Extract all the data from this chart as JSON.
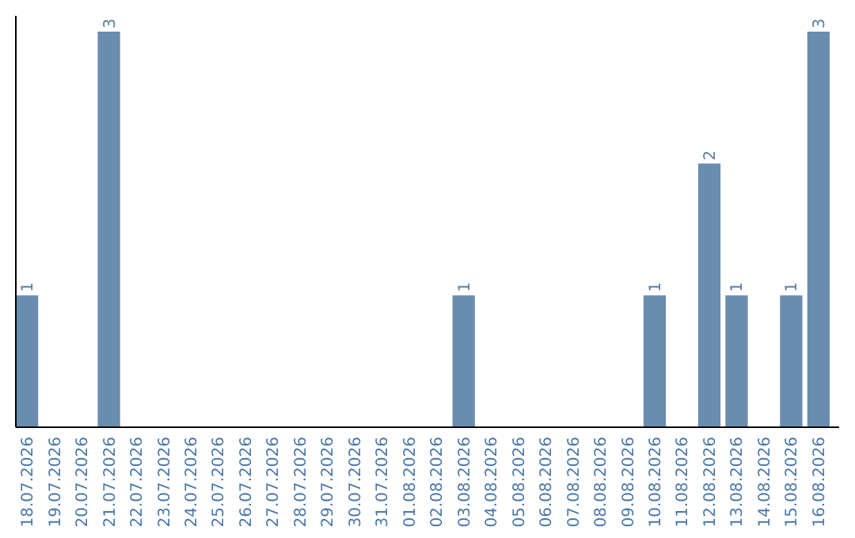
{
  "chart_data": {
    "type": "bar",
    "categories": [
      "18.07.2026",
      "19.07.2026",
      "20.07.2026",
      "21.07.2026",
      "22.07.2026",
      "23.07.2026",
      "24.07.2026",
      "25.07.2026",
      "26.07.2026",
      "27.07.2026",
      "28.07.2026",
      "29.07.2026",
      "30.07.2026",
      "31.07.2026",
      "01.08.2026",
      "02.08.2026",
      "03.08.2026",
      "04.08.2026",
      "05.08.2026",
      "06.08.2026",
      "07.08.2026",
      "08.08.2026",
      "09.08.2026",
      "10.08.2026",
      "11.08.2026",
      "12.08.2026",
      "13.08.2026",
      "14.08.2026",
      "15.08.2026",
      "16.08.2026"
    ],
    "values": [
      1,
      0,
      0,
      3,
      0,
      0,
      0,
      0,
      0,
      0,
      0,
      0,
      0,
      0,
      0,
      0,
      1,
      0,
      0,
      0,
      0,
      0,
      0,
      1,
      0,
      2,
      1,
      0,
      1,
      3
    ],
    "value_labels": [
      "1",
      null,
      null,
      "3",
      null,
      null,
      null,
      null,
      null,
      null,
      null,
      null,
      null,
      null,
      null,
      null,
      "1",
      null,
      null,
      null,
      null,
      null,
      null,
      "1",
      null,
      "2",
      "1",
      null,
      "1",
      "3"
    ],
    "color": "#6a8caf"
  }
}
